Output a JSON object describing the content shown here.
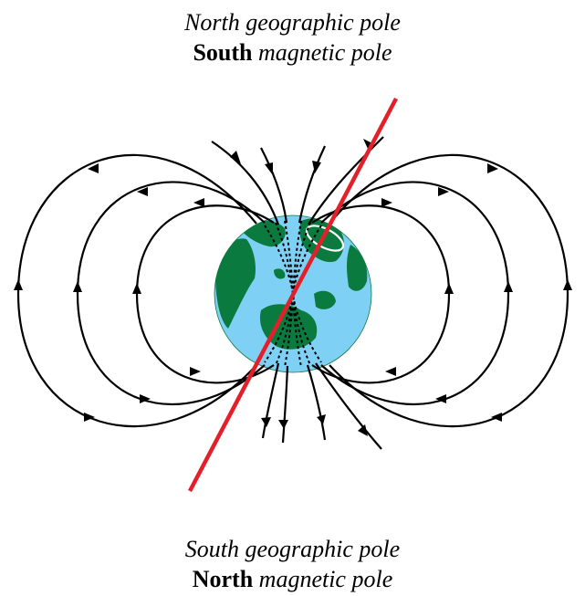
{
  "top": {
    "geographic": "North geographic pole",
    "magnetic_strong": "South",
    "magnetic_rest": " magnetic pole"
  },
  "bottom": {
    "geographic": "South geographic pole",
    "magnetic_strong": "North",
    "magnetic_rest": " magnetic pole"
  },
  "colors": {
    "ocean": "#7fd0f5",
    "land": "#0b7a3e",
    "axis": "#e3202a",
    "field_lines": "#000000"
  }
}
